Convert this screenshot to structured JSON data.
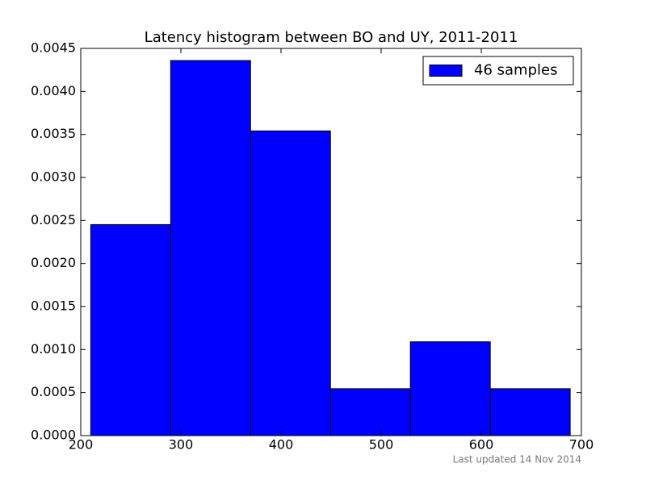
{
  "chart_data": {
    "type": "histogram",
    "title": "Latency histogram between BO and UY, 2011-2011",
    "bins": [
      210,
      289.8,
      369.6,
      449.4,
      529.2,
      609,
      688.8
    ],
    "series": [
      {
        "name": "46 samples",
        "color": "#0000ff",
        "values": [
          0.002452,
          0.004359,
          0.003541,
          0.000545,
          0.00109,
          0.000545
        ]
      }
    ],
    "xlim": [
      200,
      700
    ],
    "xticks": [
      200,
      300,
      400,
      500,
      600,
      700
    ],
    "ylim": [
      0,
      0.0045
    ],
    "yticks": [
      {
        "value": 0,
        "label": "0.0000"
      },
      {
        "value": 0.0005,
        "label": "0.0005"
      },
      {
        "value": 0.001,
        "label": "0.0010"
      },
      {
        "value": 0.0015,
        "label": "0.0015"
      },
      {
        "value": 0.002,
        "label": "0.0020"
      },
      {
        "value": 0.0025,
        "label": "0.0025"
      },
      {
        "value": 0.003,
        "label": "0.0030"
      },
      {
        "value": 0.0035,
        "label": "0.0035"
      },
      {
        "value": 0.004,
        "label": "0.0040"
      },
      {
        "value": 0.0045,
        "label": "0.0045"
      }
    ],
    "grid": false,
    "legend": "upper right",
    "footer": "Last updated 14 Nov 2014"
  }
}
